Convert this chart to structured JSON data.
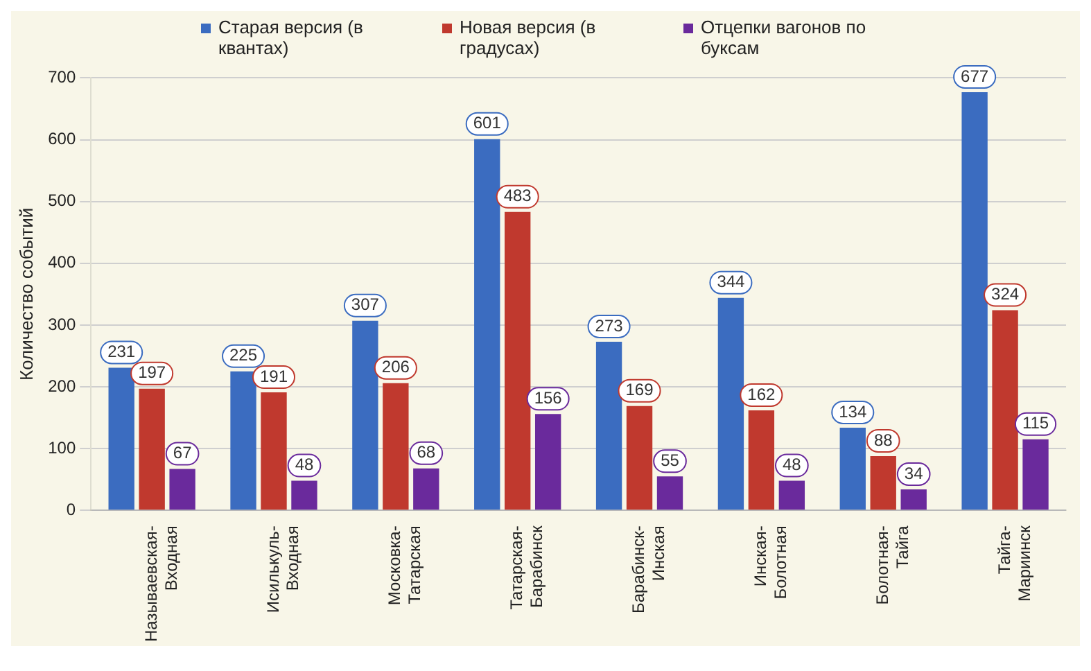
{
  "chart_data": {
    "type": "bar",
    "ylabel": "Количество событий",
    "categories": [
      "Называевская-Входная",
      "Исилькуль-Входная",
      "Московка-Татарская",
      "Татарская-Барабинск",
      "Барабинск-Инская",
      "Инская-Болотная",
      "Болотная-Тайга",
      "Тайга-Мариинск"
    ],
    "series": [
      {
        "name": "Старая версия (в квантах)",
        "color": "#3b6cc0",
        "values": [
          231,
          225,
          307,
          601,
          273,
          344,
          134,
          677
        ]
      },
      {
        "name": "Новая версия (в градусах)",
        "color": "#c0392e",
        "values": [
          197,
          191,
          206,
          483,
          169,
          162,
          88,
          324
        ]
      },
      {
        "name": "Отцепки вагонов по буксам",
        "color": "#6a2a9c",
        "values": [
          67,
          48,
          68,
          156,
          55,
          48,
          34,
          115
        ]
      }
    ],
    "ylim": [
      0,
      700
    ],
    "yticks": [
      0,
      100,
      200,
      300,
      400,
      500,
      600,
      700
    ],
    "grid": "y",
    "legend": "top",
    "data_labels": true
  }
}
